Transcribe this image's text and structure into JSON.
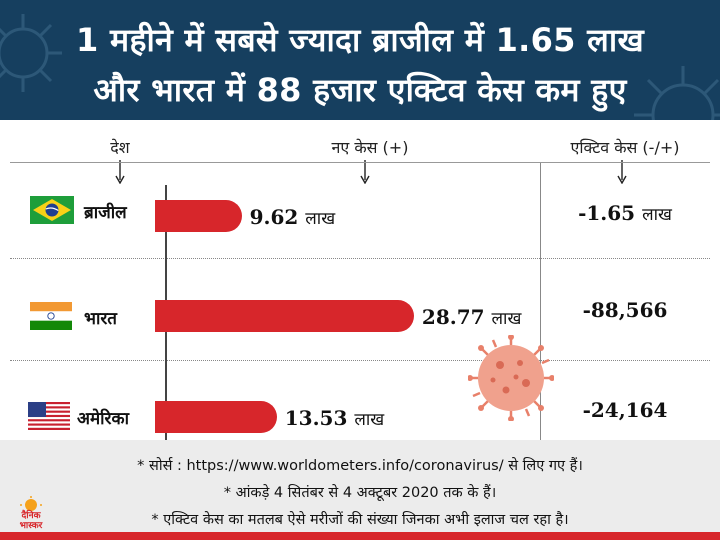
{
  "header": {
    "title_line1": "1 महीने में सबसे ज्यादा ब्राजील में 1.65 लाख",
    "title_line2": "और भारत में 88 हजार एक्टिव केस कम हुए"
  },
  "columns": {
    "country": "देश",
    "new_cases": "नए केस (+)",
    "active_cases": "एक्टिव केस (-/+)"
  },
  "unit": "लाख",
  "chart_data": {
    "type": "bar",
    "orientation": "horizontal",
    "categories": [
      "ब्राजील",
      "भारत",
      "अमेरिका"
    ],
    "series": [
      {
        "values": [
          9.62,
          28.77,
          13.53
        ]
      }
    ],
    "data_labels": [
      "9.62",
      "28.77",
      "13.53"
    ],
    "active_cases": [
      "-1.65",
      "-88,566",
      "-24,164"
    ],
    "active_cases_unit": [
      "लाख",
      "",
      ""
    ],
    "bar_color": "#d7262b"
  },
  "footnotes": [
    "* सोर्स : https://www.worldometers.info/coronavirus/ से लिए गए हैं।",
    "* आंकड़े 4 सितंबर से 4 अक्टूबर 2020 तक के हैं।",
    "* एक्टिव केस का मतलब ऐसे मरीजों की संख्या जिनका अभी इलाज चल रहा है।"
  ],
  "logo": {
    "line1": "दैनिक",
    "line2": "भास्कर"
  },
  "icons": [
    "virus-icon",
    "brazil-flag-icon",
    "india-flag-icon",
    "usa-flag-icon",
    "down-arrow-icon"
  ],
  "colors": {
    "header_bg": "#163f5f",
    "accent_red": "#d7262b",
    "virus": "#e8806a"
  }
}
